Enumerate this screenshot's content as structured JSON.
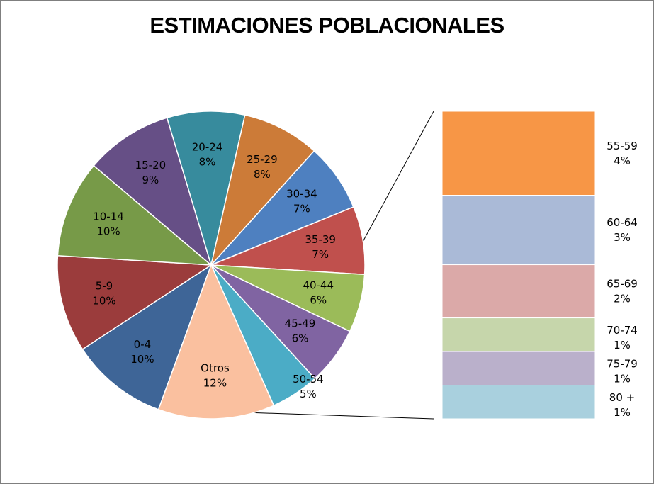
{
  "chart_data": {
    "type": "pie",
    "variant": "bar-of-pie",
    "title": "ESTIMACIONES POBLACIONALES",
    "pie": {
      "slices": [
        {
          "label": "0-4",
          "value": 10,
          "display": "10%",
          "color": "#3e6597"
        },
        {
          "label": "5-9",
          "value": 10,
          "display": "10%",
          "color": "#9b3c3c"
        },
        {
          "label": "10-14",
          "value": 10,
          "display": "10%",
          "color": "#779a48"
        },
        {
          "label": "15-20",
          "value": 9,
          "display": "9%",
          "color": "#664f86"
        },
        {
          "label": "20-24",
          "value": 8,
          "display": "8%",
          "color": "#378b9d"
        },
        {
          "label": "25-29",
          "value": 8,
          "display": "8%",
          "color": "#cc7b38"
        },
        {
          "label": "30-34",
          "value": 7,
          "display": "7%",
          "color": "#4e80c0"
        },
        {
          "label": "35-39",
          "value": 7,
          "display": "7%",
          "color": "#c0504d"
        },
        {
          "label": "40-44",
          "value": 6,
          "display": "6%",
          "color": "#9bbb59"
        },
        {
          "label": "45-49",
          "value": 6,
          "display": "6%",
          "color": "#8064a2"
        },
        {
          "label": "50-54",
          "value": 5,
          "display": "5%",
          "color": "#4bacc6"
        },
        {
          "label": "Otros",
          "value": 12,
          "display": "12%",
          "color": "#fac09f"
        }
      ]
    },
    "bar": {
      "segments": [
        {
          "label": "55-59",
          "value": 4,
          "display": "4%",
          "color": "#f79646"
        },
        {
          "label": "60-64",
          "value": 3,
          "display": "3%",
          "color": "#aabad7"
        },
        {
          "label": "65-69",
          "value": 2,
          "display": "2%",
          "color": "#dba9a8"
        },
        {
          "label": "70-74",
          "value": 1,
          "display": "1%",
          "color": "#c6d6ab"
        },
        {
          "label": "75-79",
          "value": 1,
          "display": "1%",
          "color": "#bab0cb"
        },
        {
          "label": "80 +",
          "value": 1,
          "display": "1%",
          "color": "#a9d0de"
        }
      ]
    }
  }
}
